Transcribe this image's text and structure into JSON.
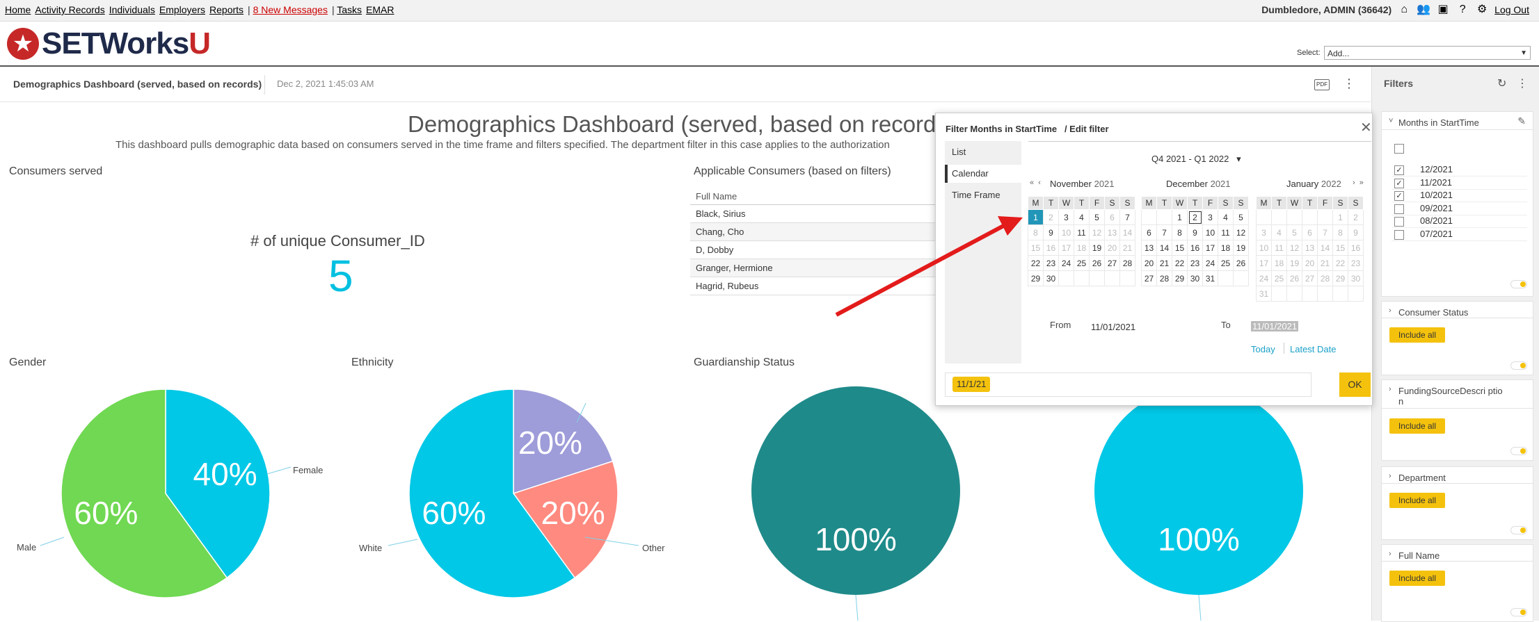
{
  "topnav": {
    "links": [
      "Home",
      "Activity Records",
      "Individuals",
      "Employers",
      "Reports"
    ],
    "messages": "8 New Messages",
    "tasks": "Tasks",
    "emar": "EMAR",
    "user": "Dumbledore, ADMIN",
    "user_id": "(36642)",
    "logout": "Log Out"
  },
  "header": {
    "logo_main": "SETWorks",
    "logo_u": "U",
    "select_label": "Select:",
    "select_value": "Add..."
  },
  "dashboard": {
    "title": "Demographics Dashboard (served, based on records)",
    "date": "Dec 2, 2021 1:45:03 AM",
    "pdf": "PDF",
    "main_title": "Demographics Dashboard (served, based on records",
    "description": "This dashboard pulls demographic data based on consumers served in the time frame and filters specified. The department filter in this case applies to the authorization"
  },
  "widgets": {
    "consumers_served": "Consumers served",
    "kpi_label": "# of unique Consumer_ID",
    "kpi_value": "5",
    "applicable": "Applicable Consumers (based on filters)",
    "table_header": "Full Name",
    "table_rows": [
      "Black, Sirius",
      "Chang, Cho",
      "D, Dobby",
      "Granger, Hermione",
      "Hagrid, Rubeus"
    ],
    "gender": "Gender",
    "ethnicity": "Ethnicity",
    "guardianship": "Guardianship Status"
  },
  "chart_data": [
    {
      "type": "pie",
      "title": "Gender",
      "categories": [
        "Female",
        "Male"
      ],
      "values": [
        40,
        60
      ],
      "colors": [
        "#00c8e6",
        "#70d852"
      ],
      "data_labels": [
        "40%",
        "60%"
      ]
    },
    {
      "type": "pie",
      "title": "Ethnicity",
      "categories": [
        "",
        "Other",
        "White"
      ],
      "values": [
        20,
        20,
        60
      ],
      "colors": [
        "#9e9cd9",
        "#ff8a80",
        "#00c8e6"
      ],
      "data_labels": [
        "20%",
        "20%",
        "60%"
      ]
    },
    {
      "type": "pie",
      "title": "Guardianship Status",
      "categories": [
        ""
      ],
      "values": [
        100
      ],
      "colors": [
        "#1f8a8a"
      ],
      "data_labels": [
        "100%"
      ]
    },
    {
      "type": "pie",
      "title": "",
      "categories": [
        ""
      ],
      "values": [
        100
      ],
      "colors": [
        "#00c8e6"
      ],
      "data_labels": [
        "100%"
      ]
    }
  ],
  "modal": {
    "title": "Filter Months in StartTime",
    "edit": "/ Edit filter",
    "side_items": [
      "List",
      "Calendar",
      "Time Frame"
    ],
    "range": "Q4 2021 - Q1 2022",
    "weekdays": [
      "M",
      "T",
      "W",
      "T",
      "F",
      "S",
      "S"
    ],
    "months": [
      {
        "name": "November",
        "year": "2021",
        "rows": [
          [
            "1",
            "2",
            "3",
            "4",
            "5",
            "6",
            "7"
          ],
          [
            "8",
            "9",
            "10",
            "11",
            "12",
            "13",
            "14"
          ],
          [
            "15",
            "16",
            "17",
            "18",
            "19",
            "20",
            "21"
          ],
          [
            "22",
            "23",
            "24",
            "25",
            "26",
            "27",
            "28"
          ],
          [
            "29",
            "30",
            "",
            "",
            "",
            "",
            ""
          ]
        ]
      },
      {
        "name": "December",
        "year": "2021",
        "rows": [
          [
            "",
            "",
            "1",
            "2",
            "3",
            "4",
            "5"
          ],
          [
            "6",
            "7",
            "8",
            "9",
            "10",
            "11",
            "12"
          ],
          [
            "13",
            "14",
            "15",
            "16",
            "17",
            "18",
            "19"
          ],
          [
            "20",
            "21",
            "22",
            "23",
            "24",
            "25",
            "26"
          ],
          [
            "27",
            "28",
            "29",
            "30",
            "31",
            "",
            ""
          ]
        ]
      },
      {
        "name": "January",
        "year": "2022",
        "rows": [
          [
            "",
            "",
            "",
            "",
            "",
            "1",
            "2"
          ],
          [
            "3",
            "4",
            "5",
            "6",
            "7",
            "8",
            "9"
          ],
          [
            "10",
            "11",
            "12",
            "13",
            "14",
            "15",
            "16"
          ],
          [
            "17",
            "18",
            "19",
            "20",
            "21",
            "22",
            "23"
          ],
          [
            "24",
            "25",
            "26",
            "27",
            "28",
            "29",
            "30"
          ],
          [
            "31",
            "",
            "",
            "",
            "",
            "",
            ""
          ]
        ]
      }
    ],
    "from_label": "From",
    "from_value": "11/01/2021",
    "to_label": "To",
    "to_value": "11/01/2021",
    "today": "Today",
    "latest": "Latest Date",
    "chip": "11/1/21",
    "ok": "OK"
  },
  "filters": {
    "title": "Filters",
    "months_title": "Months in StartTime",
    "months": [
      {
        "label": "12/2021",
        "checked": true
      },
      {
        "label": "11/2021",
        "checked": true
      },
      {
        "label": "10/2021",
        "checked": true
      },
      {
        "label": "09/2021",
        "checked": false
      },
      {
        "label": "08/2021",
        "checked": false
      },
      {
        "label": "07/2021",
        "checked": false
      }
    ],
    "cards": [
      {
        "title": "Consumer Status",
        "button": "Include all"
      },
      {
        "title": "FundingSourceDescri ption",
        "button": "Include all"
      },
      {
        "title": "Department",
        "button": "Include all"
      },
      {
        "title": "Full Name",
        "button": "Include all"
      }
    ]
  }
}
